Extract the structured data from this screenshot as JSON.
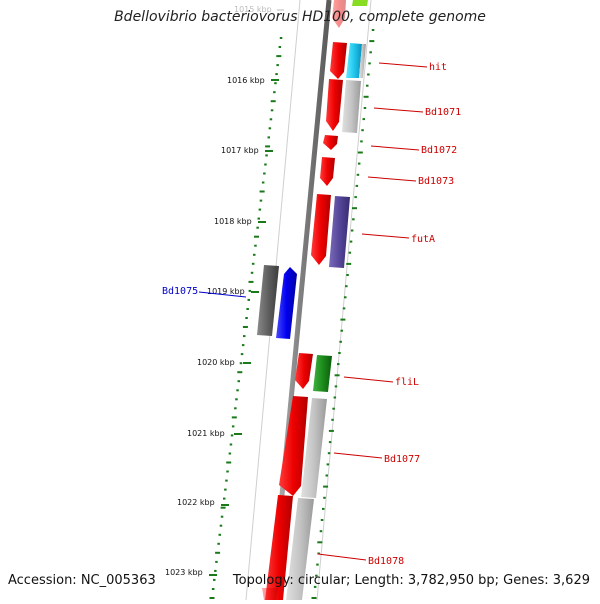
{
  "title": "Bdellovibrio bacteriovorus HD100, complete genome",
  "accession": "Accession: NC_005363",
  "topology": "Topology: circular; Length: 3,782,950 bp; Genes: 3,629",
  "colors": {
    "gene_label": "#cc0000",
    "selected_label": "#0000cc",
    "tick": "#1a7a1a",
    "ruler_label": "#111111"
  },
  "ruler": {
    "labels": [
      "1015 kbp",
      "1016 kbp",
      "1017 kbp",
      "1018 kbp",
      "1019 kbp",
      "1020 kbp",
      "1021 kbp",
      "1022 kbp",
      "1023 kbp"
    ]
  },
  "gene_labels": [
    {
      "text": "hit",
      "color": "#cc0000"
    },
    {
      "text": "Bd1071",
      "color": "#cc0000"
    },
    {
      "text": "Bd1072",
      "color": "#cc0000"
    },
    {
      "text": "Bd1073",
      "color": "#cc0000"
    },
    {
      "text": "futA",
      "color": "#cc0000"
    },
    {
      "text": "Bd1075",
      "color": "#0000cc"
    },
    {
      "text": "fliL",
      "color": "#cc0000"
    },
    {
      "text": "Bd1077",
      "color": "#cc0000"
    },
    {
      "text": "Bd1078",
      "color": "#cc0000"
    }
  ]
}
